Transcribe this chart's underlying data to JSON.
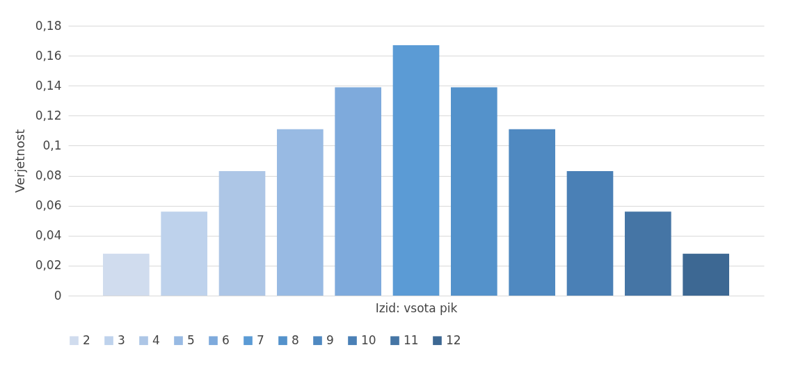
{
  "chart_data": {
    "type": "bar",
    "xlabel": "Izid: vsota pik",
    "ylabel": "Verjetnost",
    "categories": [
      null
    ],
    "series": [
      {
        "name": "2",
        "color": "#d0dcee",
        "values": [
          0.028
        ]
      },
      {
        "name": "3",
        "color": "#bed2ec",
        "values": [
          0.056
        ]
      },
      {
        "name": "4",
        "color": "#adc6e6",
        "values": [
          0.083
        ]
      },
      {
        "name": "5",
        "color": "#98bae3",
        "values": [
          0.111
        ]
      },
      {
        "name": "6",
        "color": "#7eaadc",
        "values": [
          0.139
        ]
      },
      {
        "name": "7",
        "color": "#5b9bd5",
        "values": [
          0.167
        ]
      },
      {
        "name": "8",
        "color": "#5492cb",
        "values": [
          0.139
        ]
      },
      {
        "name": "9",
        "color": "#4f89c1",
        "values": [
          0.111
        ]
      },
      {
        "name": "10",
        "color": "#4a80b6",
        "values": [
          0.083
        ]
      },
      {
        "name": "11",
        "color": "#4575a5",
        "values": [
          0.056
        ]
      },
      {
        "name": "12",
        "color": "#3d6893",
        "values": [
          0.028
        ]
      }
    ],
    "ylim": [
      0,
      0.18
    ],
    "yticks": [
      0,
      {
        "value": 0.02,
        "label": "0,02"
      },
      {
        "value": 0.04,
        "label": "0,04"
      },
      {
        "value": 0.06,
        "label": "0,06"
      },
      {
        "value": 0.08,
        "label": "0,08"
      },
      {
        "value": 0.1,
        "label": "0,1"
      },
      {
        "value": 0.12,
        "label": "0,12"
      },
      {
        "value": 0.14,
        "label": "0,14"
      },
      {
        "value": 0.16,
        "label": "0,16"
      },
      {
        "value": 0.18,
        "label": "0,18"
      }
    ],
    "grid": "y",
    "legend": "bottom",
    "tick_labels": "y"
  }
}
